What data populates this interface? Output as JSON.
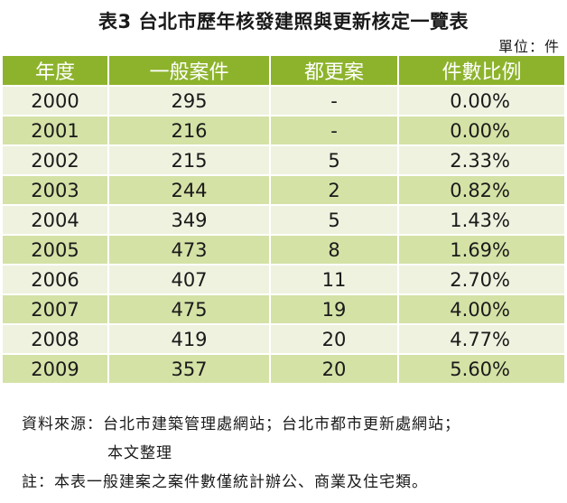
{
  "title": "表3 台北市歷年核發建照與更新核定一覽表",
  "unit": "單位：件",
  "table": {
    "headers": [
      "年度",
      "一般案件",
      "都更案",
      "件數比例"
    ],
    "rows": [
      [
        "2000",
        "295",
        "-",
        "0.00%"
      ],
      [
        "2001",
        "216",
        "-",
        "0.00%"
      ],
      [
        "2002",
        "215",
        "5",
        "2.33%"
      ],
      [
        "2003",
        "244",
        "2",
        "0.82%"
      ],
      [
        "2004",
        "349",
        "5",
        "1.43%"
      ],
      [
        "2005",
        "473",
        "8",
        "1.69%"
      ],
      [
        "2006",
        "407",
        "11",
        "2.70%"
      ],
      [
        "2007",
        "475",
        "19",
        "4.00%"
      ],
      [
        "2008",
        "419",
        "20",
        "4.77%"
      ],
      [
        "2009",
        "357",
        "20",
        "5.60%"
      ]
    ]
  },
  "notes": {
    "source_line1": "資料來源：台北市建築管理處網站；台北市都市更新處網站；",
    "source_line2": "本文整理",
    "footnote": "註：本表一般建案之案件數僅統計辦公、商業及住宅類。"
  },
  "colors": {
    "header_bg": "#8db32c",
    "row_light": "#eef2df",
    "row_dark": "#d4e2a6"
  }
}
